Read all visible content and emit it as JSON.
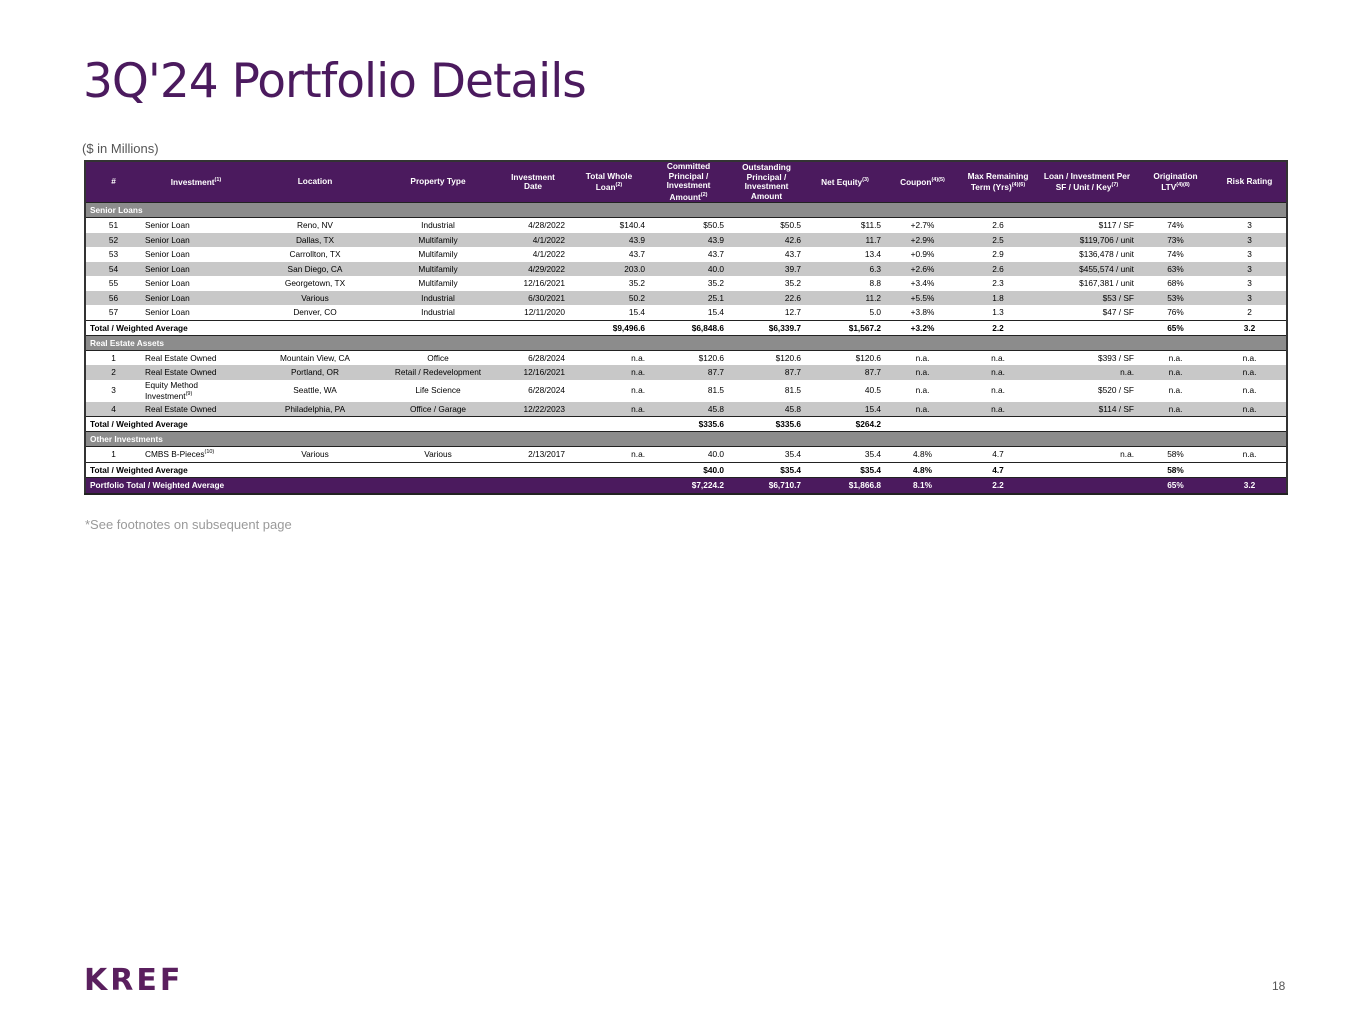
{
  "title": "3Q'24 Portfolio Details",
  "units": "($ in Millions)",
  "headers": {
    "num": "#",
    "investment": "Investment",
    "investment_sup": "(1)",
    "location": "Location",
    "property_type": "Property Type",
    "investment_date": "Investment Date",
    "total_whole_loan": "Total Whole Loan",
    "total_whole_loan_sup": "(2)",
    "committed": "Committed Principal / Investment Amount",
    "committed_sup": "(2)",
    "outstanding": "Outstanding Principal / Investment Amount",
    "net_equity": "Net Equity",
    "net_equity_sup": "(3)",
    "coupon": "Coupon",
    "coupon_sup": "(4)(5)",
    "max_term": "Max Remaining Term (Yrs)",
    "max_term_sup": "(4)(6)",
    "loan_per": "Loan / Investment Per SF / Unit / Key",
    "loan_per_sup": "(7)",
    "ltv": "Origination LTV",
    "ltv_sup": "(4)(8)",
    "risk": "Risk Rating"
  },
  "senior": {
    "label": "Senior Loans",
    "rows": [
      {
        "num": "51",
        "inv": "Senior Loan",
        "loc": "Reno, NV",
        "type": "Industrial",
        "date": "4/28/2022",
        "whole": "$140.4",
        "committed": "$50.5",
        "outstanding": "$50.5",
        "equity": "$11.5",
        "coupon": "+2.7%",
        "term": "2.6",
        "per": "$117 / SF",
        "ltv": "74%",
        "risk": "3"
      },
      {
        "num": "52",
        "inv": "Senior Loan",
        "loc": "Dallas, TX",
        "type": "Multifamily",
        "date": "4/1/2022",
        "whole": "43.9",
        "committed": "43.9",
        "outstanding": "42.6",
        "equity": "11.7",
        "coupon": "+2.9%",
        "term": "2.5",
        "per": "$119,706 / unit",
        "ltv": "73%",
        "risk": "3"
      },
      {
        "num": "53",
        "inv": "Senior Loan",
        "loc": "Carrollton, TX",
        "type": "Multifamily",
        "date": "4/1/2022",
        "whole": "43.7",
        "committed": "43.7",
        "outstanding": "43.7",
        "equity": "13.4",
        "coupon": "+0.9%",
        "term": "2.9",
        "per": "$136,478 / unit",
        "ltv": "74%",
        "risk": "3"
      },
      {
        "num": "54",
        "inv": "Senior Loan",
        "loc": "San Diego, CA",
        "type": "Multifamily",
        "date": "4/29/2022",
        "whole": "203.0",
        "committed": "40.0",
        "outstanding": "39.7",
        "equity": "6.3",
        "coupon": "+2.6%",
        "term": "2.6",
        "per": "$455,574 / unit",
        "ltv": "63%",
        "risk": "3"
      },
      {
        "num": "55",
        "inv": "Senior Loan",
        "loc": "Georgetown, TX",
        "type": "Multifamily",
        "date": "12/16/2021",
        "whole": "35.2",
        "committed": "35.2",
        "outstanding": "35.2",
        "equity": "8.8",
        "coupon": "+3.4%",
        "term": "2.3",
        "per": "$167,381 / unit",
        "ltv": "68%",
        "risk": "3"
      },
      {
        "num": "56",
        "inv": "Senior Loan",
        "loc": "Various",
        "type": "Industrial",
        "date": "6/30/2021",
        "whole": "50.2",
        "committed": "25.1",
        "outstanding": "22.6",
        "equity": "11.2",
        "coupon": "+5.5%",
        "term": "1.8",
        "per": "$53 / SF",
        "ltv": "53%",
        "risk": "3"
      },
      {
        "num": "57",
        "inv": "Senior Loan",
        "loc": "Denver, CO",
        "type": "Industrial",
        "date": "12/11/2020",
        "whole": "15.4",
        "committed": "15.4",
        "outstanding": "12.7",
        "equity": "5.0",
        "coupon": "+3.8%",
        "term": "1.3",
        "per": "$47 / SF",
        "ltv": "76%",
        "risk": "2"
      }
    ],
    "total": {
      "label": "Total / Weighted Average",
      "whole": "$9,496.6",
      "committed": "$6,848.6",
      "outstanding": "$6,339.7",
      "equity": "$1,567.2",
      "coupon": "+3.2%",
      "term": "2.2",
      "ltv": "65%",
      "risk": "3.2"
    }
  },
  "rea": {
    "label": "Real Estate Assets",
    "rows": [
      {
        "num": "1",
        "inv": "Real Estate Owned",
        "loc": "Mountain View, CA",
        "type": "Office",
        "date": "6/28/2024",
        "whole": "n.a.",
        "committed": "$120.6",
        "outstanding": "$120.6",
        "equity": "$120.6",
        "coupon": "n.a.",
        "term": "n.a.",
        "per": "$393 / SF",
        "ltv": "n.a.",
        "risk": "n.a."
      },
      {
        "num": "2",
        "inv": "Real Estate Owned",
        "loc": "Portland, OR",
        "type": "Retail / Redevelopment",
        "date": "12/16/2021",
        "whole": "n.a.",
        "committed": "87.7",
        "outstanding": "87.7",
        "equity": "87.7",
        "coupon": "n.a.",
        "term": "n.a.",
        "per": "n.a.",
        "ltv": "n.a.",
        "risk": "n.a."
      },
      {
        "num": "3",
        "inv": "Equity Method Investment",
        "inv_sup": "(9)",
        "loc": "Seattle, WA",
        "type": "Life Science",
        "date": "6/28/2024",
        "whole": "n.a.",
        "committed": "81.5",
        "outstanding": "81.5",
        "equity": "40.5",
        "coupon": "n.a.",
        "term": "n.a.",
        "per": "$520 / SF",
        "ltv": "n.a.",
        "risk": "n.a."
      },
      {
        "num": "4",
        "inv": "Real Estate Owned",
        "loc": "Philadelphia, PA",
        "type": "Office / Garage",
        "date": "12/22/2023",
        "whole": "n.a.",
        "committed": "45.8",
        "outstanding": "45.8",
        "equity": "15.4",
        "coupon": "n.a.",
        "term": "n.a.",
        "per": "$114 / SF",
        "ltv": "n.a.",
        "risk": "n.a."
      }
    ],
    "total": {
      "label": "Total / Weighted Average",
      "committed": "$335.6",
      "outstanding": "$335.6",
      "equity": "$264.2"
    }
  },
  "other": {
    "label": "Other Investments",
    "rows": [
      {
        "num": "1",
        "inv": "CMBS B-Pieces",
        "inv_sup": "(10)",
        "loc": "Various",
        "type": "Various",
        "date": "2/13/2017",
        "whole": "n.a.",
        "committed": "40.0",
        "outstanding": "35.4",
        "equity": "35.4",
        "coupon": "4.8%",
        "term": "4.7",
        "per": "n.a.",
        "ltv": "58%",
        "risk": "n.a."
      }
    ],
    "total": {
      "label": "Total / Weighted Average",
      "committed": "$40.0",
      "outstanding": "$35.4",
      "equity": "$35.4",
      "coupon": "4.8%",
      "term": "4.7",
      "ltv": "58%"
    }
  },
  "grand": {
    "label": "Portfolio Total / Weighted Average",
    "committed": "$7,224.2",
    "outstanding": "$6,710.7",
    "equity": "$1,866.8",
    "coupon": "8.1%",
    "term": "2.2",
    "ltv": "65%",
    "risk": "3.2"
  },
  "footnote": "*See footnotes on subsequent page",
  "logo": "KREF",
  "page_number": "18",
  "colors": {
    "brand_purple": "#4b1a5e",
    "section_gray": "#8c8c8c",
    "stripe_gray": "#c8c8c8"
  }
}
